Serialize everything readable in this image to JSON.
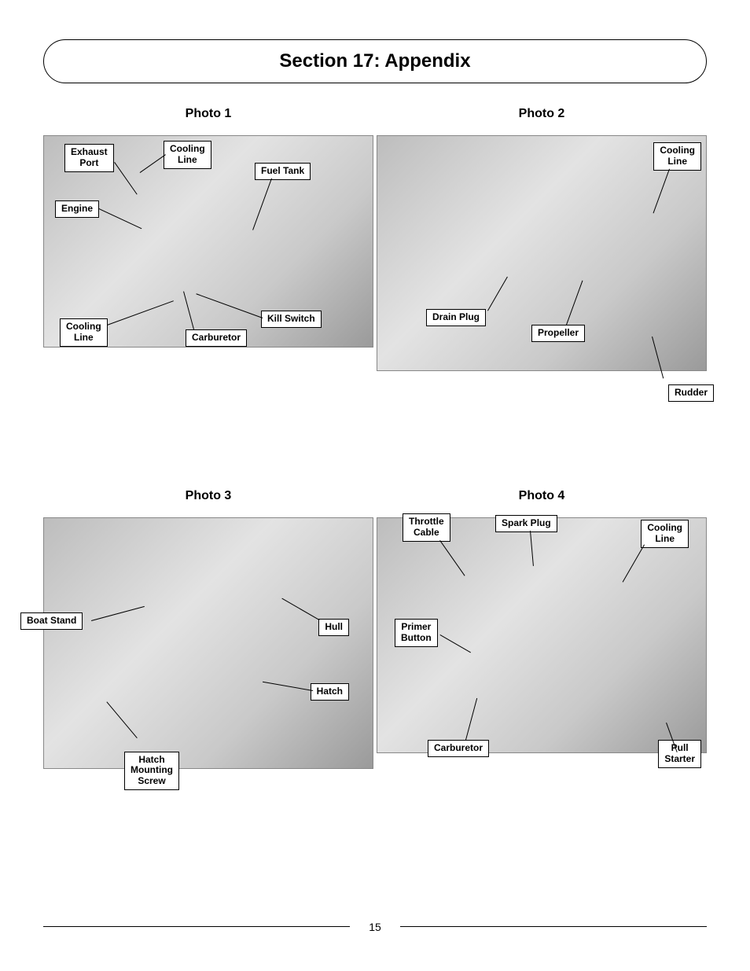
{
  "section_title": "Section 17: Appendix",
  "page_number": "15",
  "photos": {
    "p1": {
      "title": "Photo 1",
      "labels": {
        "exhaust_port": "Exhaust\nPort",
        "cooling_line_top": "Cooling\nLine",
        "fuel_tank": "Fuel Tank",
        "engine": "Engine",
        "kill_switch": "Kill Switch",
        "cooling_line_bottom": "Cooling\nLine",
        "carburetor": "Carburetor"
      }
    },
    "p2": {
      "title": "Photo 2",
      "labels": {
        "cooling_line": "Cooling\nLine",
        "drain_plug": "Drain Plug",
        "propeller": "Propeller",
        "rudder": "Rudder"
      }
    },
    "p3": {
      "title": "Photo 3",
      "labels": {
        "boat_stand": "Boat Stand",
        "hull": "Hull",
        "hatch": "Hatch",
        "hatch_mounting_screw": "Hatch\nMounting\nScrew"
      }
    },
    "p4": {
      "title": "Photo 4",
      "labels": {
        "throttle_cable": "Throttle\nCable",
        "spark_plug": "Spark Plug",
        "cooling_line": "Cooling\nLine",
        "primer_button": "Primer\nButton",
        "carburetor": "Carburetor",
        "pull_starter": "Pull\nStarter"
      }
    }
  },
  "style": {
    "page_bg": "#ffffff",
    "text_color": "#000000",
    "label_bg": "#ffffff",
    "label_border": "#000000",
    "title_fontsize_pt": 18,
    "photo_title_fontsize_pt": 12,
    "label_fontsize_pt": 9
  }
}
